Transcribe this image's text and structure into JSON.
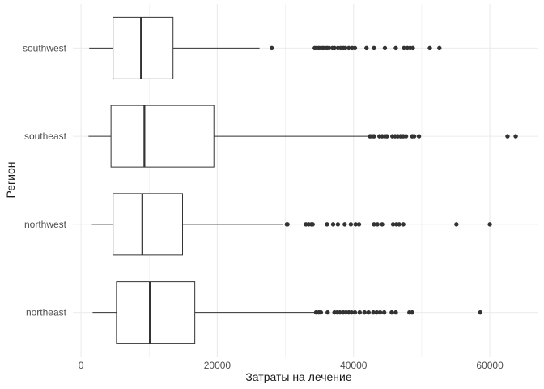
{
  "chart_data": {
    "type": "boxplot",
    "orientation": "horizontal",
    "title": "",
    "xlabel": "Затраты на лечение",
    "ylabel": "Регион",
    "xlim": [
      -1200,
      67000
    ],
    "xticks": [
      0,
      20000,
      40000,
      60000
    ],
    "xtick_labels": [
      "0",
      "20000",
      "40000",
      "60000"
    ],
    "grid": true,
    "theme": "minimal",
    "colors": {
      "box": "#333333",
      "outlier": "#333333",
      "grid": "#ebebeb",
      "text": "#4d4d4d"
    },
    "categories": [
      "northeast",
      "northwest",
      "southeast",
      "southwest"
    ],
    "series": [
      {
        "category": "northeast",
        "whisker_low": 1700,
        "q1": 5200,
        "median": 10100,
        "q3": 16700,
        "whisker_high": 34400,
        "outliers": [
          34500,
          34900,
          35200,
          36200,
          37200,
          37600,
          38000,
          38500,
          38900,
          39300,
          39700,
          40200,
          40900,
          41600,
          42200,
          42900,
          43400,
          43900,
          44500,
          45600,
          46200,
          48200,
          48600,
          58600
        ]
      },
      {
        "category": "northwest",
        "whisker_low": 1600,
        "q1": 4700,
        "median": 9000,
        "q3": 14900,
        "whisker_high": 29600,
        "outliers": [
          30200,
          30300,
          33000,
          33400,
          33800,
          34000,
          36100,
          37000,
          37700,
          38700,
          39600,
          40300,
          40800,
          43000,
          43500,
          44200,
          45800,
          46300,
          46700,
          47300,
          55100,
          60000
        ]
      },
      {
        "category": "southeast",
        "whisker_low": 1100,
        "q1": 4400,
        "median": 9300,
        "q3": 19500,
        "whisker_high": 42100,
        "outliers": [
          42400,
          42700,
          43000,
          43800,
          44200,
          44600,
          44900,
          45700,
          46100,
          46500,
          46900,
          47300,
          47700,
          48600,
          48900,
          49600,
          62600,
          63800
        ]
      },
      {
        "category": "southwest",
        "whisker_low": 1200,
        "q1": 4700,
        "median": 8800,
        "q3": 13500,
        "whisker_high": 26200,
        "outliers": [
          28000,
          34300,
          34600,
          34900,
          35200,
          35500,
          35800,
          36100,
          36400,
          36900,
          37200,
          37700,
          38100,
          38500,
          38800,
          39300,
          39800,
          40200,
          41900,
          43000,
          44600,
          46200,
          47400,
          47900,
          48300,
          48700,
          51200,
          52600
        ]
      }
    ]
  }
}
